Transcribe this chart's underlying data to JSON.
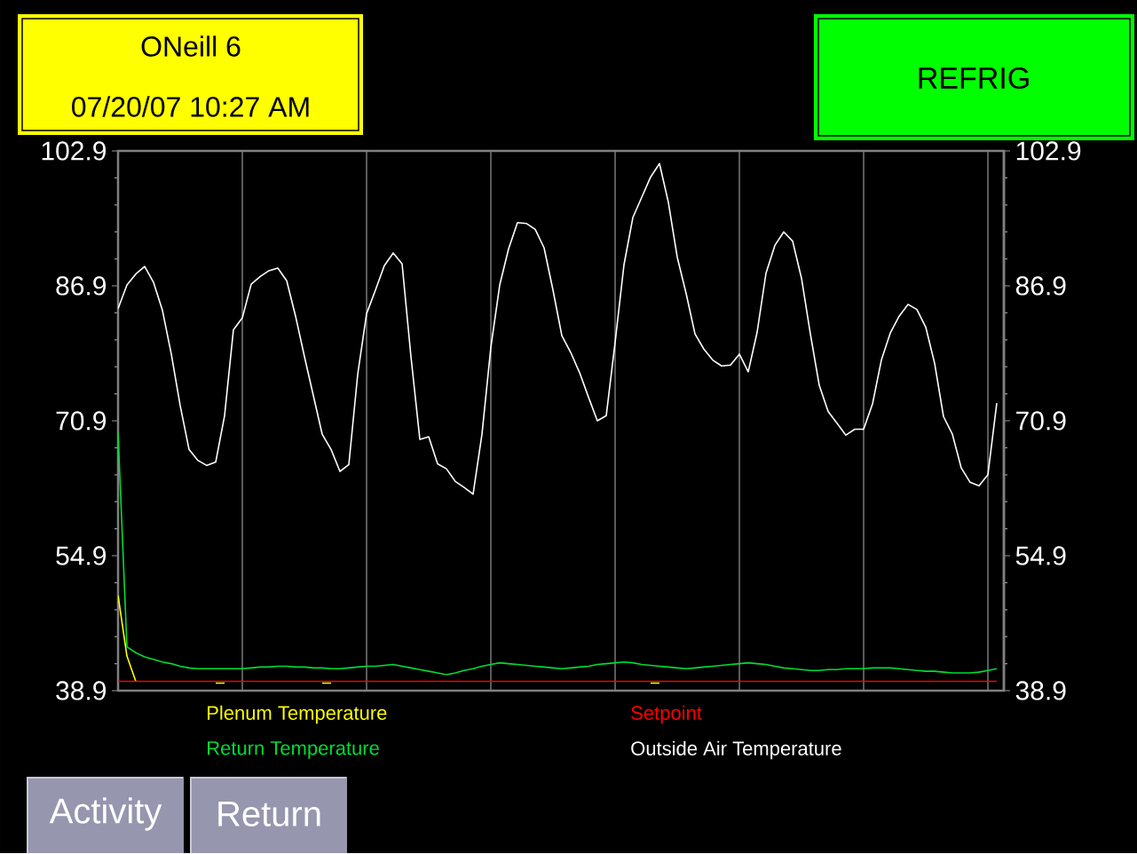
{
  "chart_data": {
    "type": "line",
    "title": "ONeill 6",
    "subtitle": "07/20/07 10:27 AM",
    "annotations": [
      "REFRIG",
      "Activity",
      "Return"
    ],
    "categories": [
      null,
      null,
      null,
      null,
      null,
      null,
      null,
      null,
      null,
      null,
      null,
      null,
      null,
      null,
      null,
      null,
      null,
      null,
      null,
      null,
      null,
      null,
      null,
      null,
      null,
      null,
      null,
      null,
      null,
      null,
      null,
      null,
      null,
      null,
      null,
      null,
      null,
      null,
      null,
      null,
      null,
      null,
      null,
      null,
      null,
      null,
      null,
      null,
      null,
      null,
      null,
      null,
      null,
      null,
      null,
      null,
      null,
      null,
      null,
      null,
      null,
      null,
      null,
      null,
      null,
      null,
      null,
      null,
      null,
      null,
      null,
      null,
      null,
      null,
      null,
      null,
      null,
      null,
      null,
      null,
      null,
      null,
      null,
      null,
      null,
      null,
      null,
      null,
      null,
      null,
      null,
      null,
      null,
      null,
      null,
      null,
      null,
      null,
      null,
      null
    ],
    "ylim": [
      38.9,
      102.9
    ],
    "yticks": [
      38.9,
      54.9,
      70.9,
      86.9,
      102.9
    ],
    "y2lim": [
      38.9,
      102.9
    ],
    "y2ticks": [
      38.9,
      54.9,
      70.9,
      86.9,
      102.9
    ],
    "tick_labels": "y",
    "grid": "x",
    "legend": "bottom",
    "series": [
      {
        "name": "Plenum Temperature",
        "color": "#ffff00",
        "values": [
          50.2,
          43.0,
          40.0,
          null,
          null,
          null,
          null,
          null,
          null,
          null,
          null,
          39.8,
          39.8,
          null,
          null,
          null,
          null,
          null,
          null,
          null,
          null,
          null,
          null,
          39.8,
          39.8,
          null,
          null,
          null,
          null,
          null,
          null,
          null,
          null,
          null,
          null,
          null,
          null,
          null,
          null,
          null,
          null,
          null,
          null,
          null,
          null,
          null,
          null,
          null,
          null,
          null,
          null,
          null,
          null,
          null,
          null,
          null,
          null,
          null,
          null,
          null,
          39.8,
          39.8,
          null,
          null,
          null,
          null,
          null,
          null,
          null,
          null,
          null,
          null,
          null,
          null,
          null,
          null,
          null,
          null,
          null,
          null,
          null,
          null,
          null,
          null,
          null,
          null,
          null,
          null,
          null,
          null,
          null,
          null,
          null,
          null,
          null,
          null,
          null,
          null,
          null,
          null
        ]
      },
      {
        "name": "Setpoint",
        "color": "#ff0000",
        "values": [
          40.0,
          40.0,
          40.0,
          40.0,
          40.0,
          40.0,
          40.0,
          40.0,
          40.0,
          40.0,
          40.0,
          40.0,
          40.0,
          40.0,
          40.0,
          40.0,
          40.0,
          40.0,
          40.0,
          40.0,
          40.0,
          40.0,
          40.0,
          40.0,
          40.0,
          40.0,
          40.0,
          40.0,
          40.0,
          40.0,
          40.0,
          40.0,
          40.0,
          40.0,
          40.0,
          40.0,
          40.0,
          40.0,
          40.0,
          40.0,
          40.0,
          40.0,
          40.0,
          40.0,
          40.0,
          40.0,
          40.0,
          40.0,
          40.0,
          40.0,
          40.0,
          40.0,
          40.0,
          40.0,
          40.0,
          40.0,
          40.0,
          40.0,
          40.0,
          40.0,
          40.0,
          40.0,
          40.0,
          40.0,
          40.0,
          40.0,
          40.0,
          40.0,
          40.0,
          40.0,
          40.0,
          40.0,
          40.0,
          40.0,
          40.0,
          40.0,
          40.0,
          40.0,
          40.0,
          40.0,
          40.0,
          40.0,
          40.0,
          40.0,
          40.0,
          40.0,
          40.0,
          40.0,
          40.0,
          40.0,
          40.0,
          40.0,
          40.0,
          40.0,
          40.0,
          40.0,
          40.0,
          40.0,
          40.0,
          40.0
        ]
      },
      {
        "name": "Return Temperature",
        "color": "#00dd33",
        "values": [
          69.5,
          44.1,
          43.4,
          42.9,
          42.6,
          42.3,
          42.1,
          41.8,
          41.6,
          41.5,
          41.5,
          41.5,
          41.5,
          41.5,
          41.5,
          41.6,
          41.7,
          41.7,
          41.8,
          41.8,
          41.7,
          41.7,
          41.6,
          41.6,
          41.5,
          41.5,
          41.6,
          41.7,
          41.8,
          41.8,
          41.9,
          42.0,
          41.8,
          41.6,
          41.4,
          41.2,
          41.0,
          40.8,
          41.0,
          41.3,
          41.5,
          41.8,
          42.0,
          42.2,
          42.1,
          42.0,
          41.9,
          41.8,
          41.7,
          41.6,
          41.5,
          41.6,
          41.7,
          41.8,
          42.0,
          42.1,
          42.2,
          42.3,
          42.2,
          42.0,
          41.9,
          41.8,
          41.7,
          41.6,
          41.5,
          41.6,
          41.7,
          41.8,
          41.9,
          42.0,
          42.1,
          42.2,
          42.1,
          42.0,
          41.8,
          41.6,
          41.5,
          41.4,
          41.3,
          41.3,
          41.4,
          41.4,
          41.5,
          41.5,
          41.5,
          41.6,
          41.6,
          41.6,
          41.5,
          41.4,
          41.3,
          41.2,
          41.2,
          41.1,
          41.0,
          41.0,
          41.0,
          41.1,
          41.3,
          41.5
        ]
      },
      {
        "name": "Outside Air Temperature",
        "color": "#ffffff",
        "values": [
          84.2,
          87.0,
          88.3,
          89.2,
          87.3,
          84.0,
          78.8,
          72.7,
          67.5,
          66.2,
          65.6,
          66.0,
          71.5,
          81.7,
          83.1,
          87.1,
          88.0,
          88.7,
          89.0,
          87.5,
          83.3,
          78.5,
          73.9,
          69.3,
          67.5,
          64.9,
          65.7,
          76.4,
          83.6,
          86.4,
          89.3,
          90.8,
          89.5,
          78.5,
          68.7,
          69.0,
          65.8,
          65.2,
          63.7,
          63.0,
          62.2,
          69.3,
          79.6,
          87.0,
          91.3,
          94.4,
          94.3,
          93.6,
          91.4,
          86.4,
          81.0,
          79.0,
          76.6,
          73.7,
          70.9,
          71.5,
          80.2,
          89.4,
          95.0,
          97.4,
          99.8,
          101.4,
          96.8,
          90.3,
          86.0,
          81.2,
          79.4,
          78.1,
          77.4,
          77.5,
          78.8,
          76.7,
          81.4,
          88.4,
          91.7,
          93.3,
          92.2,
          87.8,
          81.2,
          75.1,
          72.0,
          70.6,
          69.2,
          69.9,
          69.9,
          72.9,
          78.1,
          81.3,
          83.3,
          84.7,
          84.1,
          82.0,
          77.7,
          71.4,
          69.3,
          65.3,
          63.6,
          63.2,
          64.5,
          73.0
        ]
      }
    ]
  }
}
